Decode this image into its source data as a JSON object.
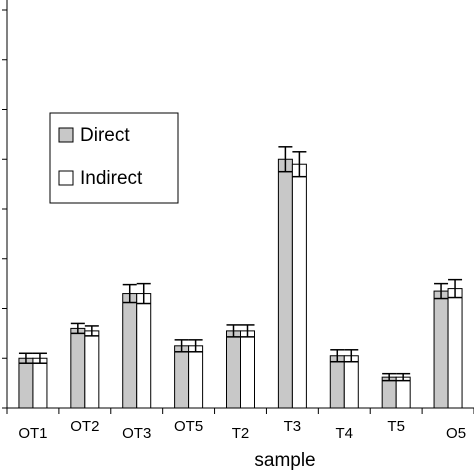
{
  "chart_data": {
    "type": "bar",
    "title": "",
    "xlabel": "sample",
    "ylabel": "",
    "categories": [
      "OT1",
      "OT2",
      "OT3",
      "OT5",
      "T2",
      "T3",
      "T4",
      "T5",
      "O5"
    ],
    "ylim": [
      0,
      8
    ],
    "y_major_step": 1,
    "y_tick_labels_visible": false,
    "grid": false,
    "legend_position": "upper-left",
    "series": [
      {
        "name": "Direct",
        "color": "#c8c8c8",
        "values": [
          1.0,
          1.6,
          2.3,
          1.25,
          1.55,
          5.0,
          1.05,
          0.62,
          2.35
        ],
        "errors": [
          0.1,
          0.1,
          0.18,
          0.12,
          0.12,
          0.25,
          0.12,
          0.07,
          0.15
        ]
      },
      {
        "name": "Indirect",
        "color": "#ffffff",
        "values": [
          1.0,
          1.55,
          2.3,
          1.25,
          1.55,
          4.9,
          1.05,
          0.62,
          2.4
        ],
        "errors": [
          0.1,
          0.1,
          0.2,
          0.12,
          0.12,
          0.25,
          0.12,
          0.07,
          0.18
        ]
      }
    ]
  }
}
